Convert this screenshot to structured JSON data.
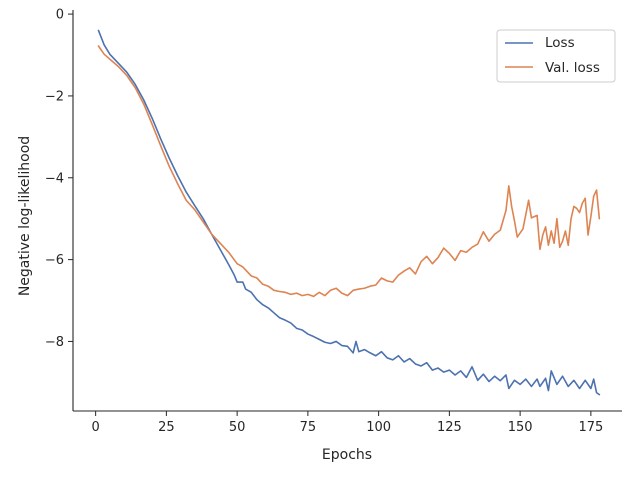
{
  "chart_data": {
    "type": "line",
    "title": "",
    "xlabel": "Epochs",
    "ylabel": "Negative log-likelihood",
    "xlim": [
      -8,
      186
    ],
    "ylim": [
      -9.7,
      0.1
    ],
    "xticks": [
      0,
      25,
      50,
      75,
      100,
      125,
      150,
      175
    ],
    "yticks": [
      0,
      -2,
      -4,
      -6,
      -8
    ],
    "grid": false,
    "legend_position": "top-right",
    "series": [
      {
        "name": "Loss",
        "color": "#4c72b0",
        "points": [
          [
            1,
            -0.4
          ],
          [
            3,
            -0.75
          ],
          [
            5,
            -0.98
          ],
          [
            8,
            -1.2
          ],
          [
            11,
            -1.42
          ],
          [
            14,
            -1.72
          ],
          [
            17,
            -2.1
          ],
          [
            20,
            -2.55
          ],
          [
            23,
            -3.05
          ],
          [
            26,
            -3.52
          ],
          [
            29,
            -3.95
          ],
          [
            32,
            -4.35
          ],
          [
            35,
            -4.68
          ],
          [
            38,
            -5.0
          ],
          [
            41,
            -5.38
          ],
          [
            44,
            -5.75
          ],
          [
            47,
            -6.12
          ],
          [
            49,
            -6.38
          ],
          [
            50,
            -6.55
          ],
          [
            52,
            -6.55
          ],
          [
            53,
            -6.72
          ],
          [
            55,
            -6.8
          ],
          [
            57,
            -6.98
          ],
          [
            59,
            -7.1
          ],
          [
            61,
            -7.18
          ],
          [
            63,
            -7.3
          ],
          [
            65,
            -7.42
          ],
          [
            67,
            -7.48
          ],
          [
            69,
            -7.55
          ],
          [
            71,
            -7.68
          ],
          [
            73,
            -7.72
          ],
          [
            75,
            -7.82
          ],
          [
            77,
            -7.88
          ],
          [
            79,
            -7.95
          ],
          [
            81,
            -8.02
          ],
          [
            83,
            -8.05
          ],
          [
            85,
            -8.0
          ],
          [
            87,
            -8.1
          ],
          [
            89,
            -8.12
          ],
          [
            91,
            -8.28
          ],
          [
            92,
            -8.0
          ],
          [
            93,
            -8.25
          ],
          [
            95,
            -8.2
          ],
          [
            97,
            -8.28
          ],
          [
            99,
            -8.35
          ],
          [
            101,
            -8.25
          ],
          [
            103,
            -8.4
          ],
          [
            105,
            -8.45
          ],
          [
            107,
            -8.35
          ],
          [
            109,
            -8.5
          ],
          [
            111,
            -8.42
          ],
          [
            113,
            -8.55
          ],
          [
            115,
            -8.6
          ],
          [
            117,
            -8.52
          ],
          [
            119,
            -8.7
          ],
          [
            121,
            -8.65
          ],
          [
            123,
            -8.75
          ],
          [
            125,
            -8.7
          ],
          [
            127,
            -8.82
          ],
          [
            129,
            -8.72
          ],
          [
            131,
            -8.88
          ],
          [
            133,
            -8.62
          ],
          [
            135,
            -8.95
          ],
          [
            137,
            -8.8
          ],
          [
            139,
            -8.98
          ],
          [
            141,
            -8.85
          ],
          [
            143,
            -8.96
          ],
          [
            145,
            -8.82
          ],
          [
            146,
            -9.15
          ],
          [
            148,
            -8.95
          ],
          [
            150,
            -9.05
          ],
          [
            152,
            -8.92
          ],
          [
            154,
            -9.1
          ],
          [
            156,
            -8.92
          ],
          [
            157,
            -9.1
          ],
          [
            159,
            -8.9
          ],
          [
            160,
            -9.2
          ],
          [
            161,
            -8.72
          ],
          [
            163,
            -9.05
          ],
          [
            165,
            -8.85
          ],
          [
            167,
            -9.1
          ],
          [
            169,
            -8.95
          ],
          [
            171,
            -9.15
          ],
          [
            173,
            -8.95
          ],
          [
            175,
            -9.15
          ],
          [
            176,
            -8.92
          ],
          [
            177,
            -9.25
          ],
          [
            178,
            -9.3
          ]
        ]
      },
      {
        "name": "Val. loss",
        "color": "#dd8452",
        "points": [
          [
            1,
            -0.78
          ],
          [
            3,
            -0.98
          ],
          [
            5,
            -1.1
          ],
          [
            8,
            -1.28
          ],
          [
            11,
            -1.5
          ],
          [
            14,
            -1.8
          ],
          [
            17,
            -2.2
          ],
          [
            20,
            -2.7
          ],
          [
            23,
            -3.22
          ],
          [
            26,
            -3.72
          ],
          [
            29,
            -4.15
          ],
          [
            32,
            -4.55
          ],
          [
            35,
            -4.78
          ],
          [
            38,
            -5.08
          ],
          [
            41,
            -5.38
          ],
          [
            44,
            -5.6
          ],
          [
            47,
            -5.82
          ],
          [
            50,
            -6.1
          ],
          [
            52,
            -6.18
          ],
          [
            55,
            -6.4
          ],
          [
            57,
            -6.45
          ],
          [
            59,
            -6.6
          ],
          [
            61,
            -6.65
          ],
          [
            63,
            -6.75
          ],
          [
            65,
            -6.78
          ],
          [
            67,
            -6.8
          ],
          [
            69,
            -6.85
          ],
          [
            71,
            -6.82
          ],
          [
            73,
            -6.88
          ],
          [
            75,
            -6.85
          ],
          [
            77,
            -6.9
          ],
          [
            79,
            -6.8
          ],
          [
            81,
            -6.88
          ],
          [
            83,
            -6.75
          ],
          [
            85,
            -6.7
          ],
          [
            87,
            -6.82
          ],
          [
            89,
            -6.88
          ],
          [
            91,
            -6.75
          ],
          [
            93,
            -6.72
          ],
          [
            95,
            -6.7
          ],
          [
            97,
            -6.65
          ],
          [
            99,
            -6.62
          ],
          [
            101,
            -6.45
          ],
          [
            103,
            -6.52
          ],
          [
            105,
            -6.55
          ],
          [
            107,
            -6.38
          ],
          [
            109,
            -6.28
          ],
          [
            111,
            -6.2
          ],
          [
            113,
            -6.35
          ],
          [
            115,
            -6.05
          ],
          [
            117,
            -5.92
          ],
          [
            119,
            -6.1
          ],
          [
            121,
            -5.95
          ],
          [
            123,
            -5.72
          ],
          [
            125,
            -5.85
          ],
          [
            127,
            -6.02
          ],
          [
            129,
            -5.78
          ],
          [
            131,
            -5.82
          ],
          [
            133,
            -5.7
          ],
          [
            135,
            -5.62
          ],
          [
            137,
            -5.32
          ],
          [
            139,
            -5.55
          ],
          [
            141,
            -5.38
          ],
          [
            143,
            -5.28
          ],
          [
            145,
            -4.8
          ],
          [
            146,
            -4.2
          ],
          [
            147,
            -4.7
          ],
          [
            148,
            -5.05
          ],
          [
            149,
            -5.45
          ],
          [
            151,
            -5.25
          ],
          [
            153,
            -4.55
          ],
          [
            154,
            -4.98
          ],
          [
            156,
            -4.92
          ],
          [
            157,
            -5.75
          ],
          [
            158,
            -5.4
          ],
          [
            159,
            -5.2
          ],
          [
            160,
            -5.65
          ],
          [
            161,
            -5.3
          ],
          [
            162,
            -5.6
          ],
          [
            163,
            -5.0
          ],
          [
            164,
            -5.7
          ],
          [
            165,
            -5.55
          ],
          [
            166,
            -5.3
          ],
          [
            167,
            -5.65
          ],
          [
            168,
            -5.0
          ],
          [
            169,
            -4.7
          ],
          [
            170,
            -4.75
          ],
          [
            171,
            -4.85
          ],
          [
            172,
            -4.62
          ],
          [
            173,
            -4.5
          ],
          [
            174,
            -5.4
          ],
          [
            175,
            -4.95
          ],
          [
            176,
            -4.45
          ],
          [
            177,
            -4.3
          ],
          [
            178,
            -5.0
          ]
        ]
      }
    ]
  }
}
